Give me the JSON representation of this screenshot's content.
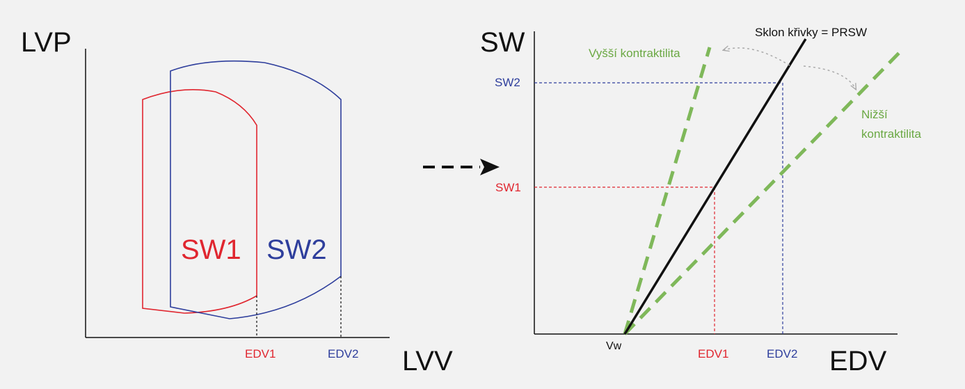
{
  "colors": {
    "background": "#f2f2f2",
    "red": "#e0262f",
    "blue": "#2e3e9c",
    "green": "#7fb85a",
    "green_label": "#6aa843",
    "black": "#111111",
    "gray_arrow": "#aaaaaa"
  },
  "left_diagram": {
    "y_axis_label": "LVP",
    "x_axis_label": "LVV",
    "loop1_label": "SW1",
    "loop2_label": "SW2",
    "edv1_label": "EDV1",
    "edv2_label": "EDV2"
  },
  "transition_arrow_icon": "dashed-right-arrow",
  "right_diagram": {
    "y_axis_label": "SW",
    "x_axis_label": "EDV",
    "sw1_label": "SW1",
    "sw2_label": "SW2",
    "edv1_label": "EDV1",
    "edv2_label": "EDV2",
    "vw_label": "Vw",
    "slope_label": "Sklon křivky = PRSW",
    "higher_label": "Vyšší kontraktilita",
    "lower_label_line1": "Nižší",
    "lower_label_line2": "kontraktilita"
  }
}
